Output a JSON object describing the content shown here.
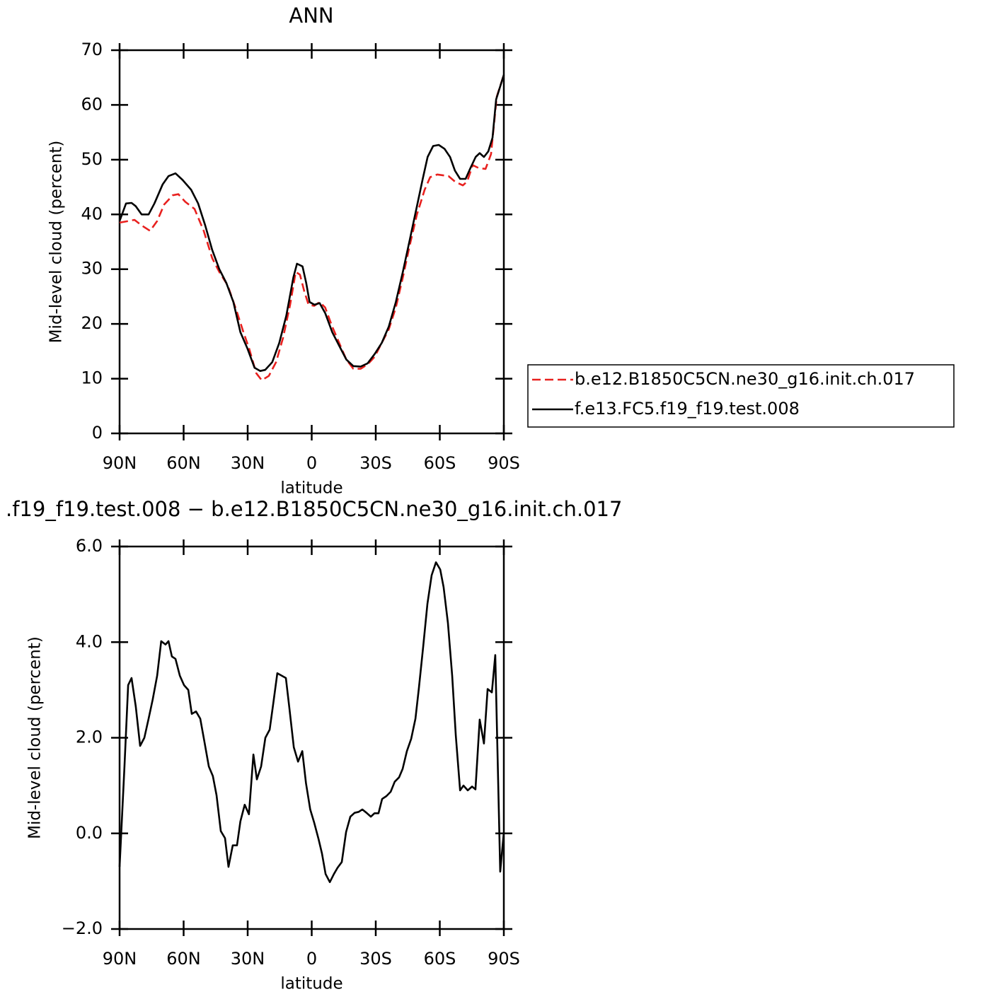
{
  "chart_data": [
    {
      "type": "line",
      "title": "ANN",
      "xlabel": "latitude",
      "ylabel": "Mid-level cloud (percent)",
      "xlim": [
        90,
        -90
      ],
      "ylim": [
        0,
        70
      ],
      "xticks": [
        {
          "value": 90,
          "label": "90N"
        },
        {
          "value": 60,
          "label": "60N"
        },
        {
          "value": 30,
          "label": "30N"
        },
        0,
        {
          "value": -30,
          "label": "30S"
        },
        {
          "value": -60,
          "label": "60S"
        },
        {
          "value": -90,
          "label": "90S"
        }
      ],
      "yticks": [
        0,
        10,
        20,
        30,
        40,
        50,
        60,
        70
      ],
      "legend": "right",
      "series": [
        {
          "name": "b.e12.B1850C5CN.ne30_g16.init.ch.017",
          "color": "#e8201e",
          "line_style": "dashed",
          "x": [
            90,
            83.0,
            79.7,
            75.7,
            72.4,
            69.1,
            65.1,
            62.5,
            59.2,
            54.9,
            50.6,
            46.6,
            43.3,
            39.3,
            35.3,
            32.0,
            29.3,
            26.0,
            23.4,
            20.1,
            16.7,
            13.4,
            10.1,
            7.5,
            5.5,
            3.5,
            1.5,
            -1.2,
            -3.7,
            -6.3,
            -9.6,
            -12.9,
            -16.2,
            -19.5,
            -22.9,
            -26.2,
            -29.5,
            -32.8,
            -36.1,
            -39.4,
            -42.7,
            -46.0,
            -49.3,
            -52.9,
            -55.5,
            -58.8,
            -64.1,
            -67.1,
            -70.8,
            -72.8,
            -75.4,
            -78.1,
            -81.4,
            -84.0,
            -86.7,
            -90
          ],
          "values": [
            38.5,
            39,
            38,
            37,
            38.8,
            41.8,
            43.5,
            43.7,
            42.3,
            41,
            37,
            32,
            29.5,
            27,
            22.5,
            18.5,
            15.5,
            11,
            9.7,
            10.5,
            13,
            17.5,
            23.5,
            29.5,
            29,
            26,
            23.5,
            23.3,
            24,
            23,
            19.5,
            16.5,
            13.5,
            11.8,
            11.8,
            12.6,
            14,
            16.5,
            19,
            23,
            28.5,
            34.5,
            40,
            44.5,
            46.8,
            47.3,
            47,
            46,
            45.3,
            46,
            49,
            48.5,
            48.3,
            51,
            61.5,
            65.5
          ]
        },
        {
          "name": "f.e13.FC5.f19_f19.test.008",
          "color": "#000000",
          "line_style": "solid",
          "x": [
            90,
            87.0,
            84.4,
            82.4,
            79.7,
            76.4,
            73.7,
            69.8,
            67.1,
            63.8,
            60.5,
            56.5,
            53.2,
            49.9,
            46.6,
            43.3,
            40.0,
            36.7,
            33.4,
            30.1,
            26.8,
            24.1,
            21.8,
            18.5,
            15.2,
            11.9,
            8.6,
            6.9,
            4.3,
            2.6,
            1.0,
            -1.3,
            -3.7,
            -6.3,
            -9.6,
            -12.9,
            -16.2,
            -19.5,
            -22.9,
            -26.2,
            -29.5,
            -32.8,
            -36.1,
            -39.4,
            -42.7,
            -46.0,
            -49.3,
            -52.0,
            -54.3,
            -56.9,
            -59.5,
            -62.2,
            -64.8,
            -67.1,
            -69.5,
            -72.1,
            -74.4,
            -76.8,
            -78.7,
            -80.7,
            -82.7,
            -84.7,
            -86.4,
            -90
          ],
          "values": [
            38.8,
            42,
            42.1,
            41.5,
            40,
            40,
            42,
            45.5,
            47,
            47.5,
            46.3,
            44.5,
            42,
            38,
            33.5,
            30,
            27.5,
            24,
            18.5,
            15.5,
            12,
            11.4,
            11.6,
            13,
            16.5,
            21.5,
            28.5,
            31,
            30.5,
            27.5,
            24,
            23.5,
            23.8,
            22,
            18.5,
            16,
            13.5,
            12.3,
            12.2,
            12.8,
            14.5,
            16.5,
            19.5,
            24,
            29.5,
            35.5,
            41.5,
            46.5,
            50.5,
            52.5,
            52.7,
            52,
            50.5,
            48,
            46.5,
            46.5,
            48.5,
            50.5,
            51.2,
            50.5,
            51.5,
            54,
            61,
            65.5
          ]
        }
      ]
    },
    {
      "type": "line",
      "title": ".f19_f19.test.008 − b.e12.B1850C5CN.ne30_g16.init.ch.017",
      "xlabel": "latitude",
      "ylabel": "Mid-level cloud (percent)",
      "xlim": [
        90,
        -90
      ],
      "ylim": [
        -2,
        6
      ],
      "xticks": [
        {
          "value": 90,
          "label": "90N"
        },
        {
          "value": 60,
          "label": "60N"
        },
        {
          "value": 30,
          "label": "30N"
        },
        0,
        {
          "value": -30,
          "label": "30S"
        },
        {
          "value": -60,
          "label": "60S"
        },
        {
          "value": -90,
          "label": "90S"
        }
      ],
      "yticks": [
        {
          "value": -2,
          "label": "−2.0"
        },
        {
          "value": 0,
          "label": "0.0"
        },
        {
          "value": 2,
          "label": "2.0"
        },
        {
          "value": 4,
          "label": "4.0"
        },
        {
          "value": 6,
          "label": "6.0"
        }
      ],
      "series": [
        {
          "color": "#000000",
          "line_style": "solid",
          "x": [
            90,
            87.7,
            86.0,
            84.4,
            82.4,
            80.4,
            78.4,
            76.4,
            74.5,
            72.4,
            70.5,
            68.5,
            67.1,
            65.5,
            63.8,
            61.8,
            59.8,
            57.8,
            56.2,
            54.2,
            52.2,
            50.2,
            48.2,
            46.3,
            44.6,
            42.6,
            40.6,
            39.0,
            37.0,
            35.0,
            33.4,
            31.4,
            29.4,
            27.3,
            25.7,
            23.7,
            21.7,
            19.7,
            18.0,
            16.1,
            14.1,
            12.1,
            10.4,
            8.4,
            6.4,
            4.4,
            2.7,
            0.7,
            -1.2,
            -3.2,
            -4.8,
            -6.5,
            -8.5,
            -10.4,
            -12.1,
            -14.1,
            -16.1,
            -18.1,
            -20.1,
            -22.0,
            -23.7,
            -25.7,
            -27.7,
            -29.4,
            -31.3,
            -33.0,
            -35.0,
            -37.0,
            -38.9,
            -40.9,
            -42.6,
            -44.6,
            -46.6,
            -48.6,
            -50.2,
            -52.2,
            -54.2,
            -56.2,
            -58.2,
            -60.2,
            -61.8,
            -63.8,
            -65.8,
            -67.5,
            -69.5,
            -71.1,
            -73.1,
            -75.1,
            -76.7,
            -78.7,
            -80.7,
            -82.4,
            -84.4,
            -86.0,
            -88.3,
            -90
          ],
          "values": [
            -0.7,
            1.4,
            3.1,
            3.25,
            2.65,
            1.83,
            2.0,
            2.4,
            2.8,
            3.3,
            4.02,
            3.95,
            4.02,
            3.7,
            3.65,
            3.3,
            3.1,
            3.0,
            2.5,
            2.55,
            2.4,
            1.9,
            1.4,
            1.2,
            0.8,
            0.05,
            -0.1,
            -0.7,
            -0.25,
            -0.25,
            0.25,
            0.6,
            0.4,
            1.65,
            1.13,
            1.4,
            2.0,
            2.17,
            2.72,
            3.35,
            3.3,
            3.25,
            2.6,
            1.8,
            1.5,
            1.72,
            1.05,
            0.5,
            0.22,
            -0.12,
            -0.42,
            -0.85,
            -1.02,
            -0.85,
            -0.72,
            -0.6,
            0.03,
            0.35,
            0.43,
            0.45,
            0.5,
            0.43,
            0.35,
            0.42,
            0.42,
            0.72,
            0.78,
            0.87,
            1.08,
            1.17,
            1.35,
            1.72,
            1.98,
            2.4,
            3.03,
            3.9,
            4.8,
            5.4,
            5.67,
            5.52,
            5.15,
            4.4,
            3.3,
            2.05,
            0.9,
            1.0,
            0.9,
            0.98,
            0.92,
            2.38,
            1.88,
            3.02,
            2.95,
            3.73,
            -0.8,
            0.02
          ]
        }
      ]
    }
  ]
}
